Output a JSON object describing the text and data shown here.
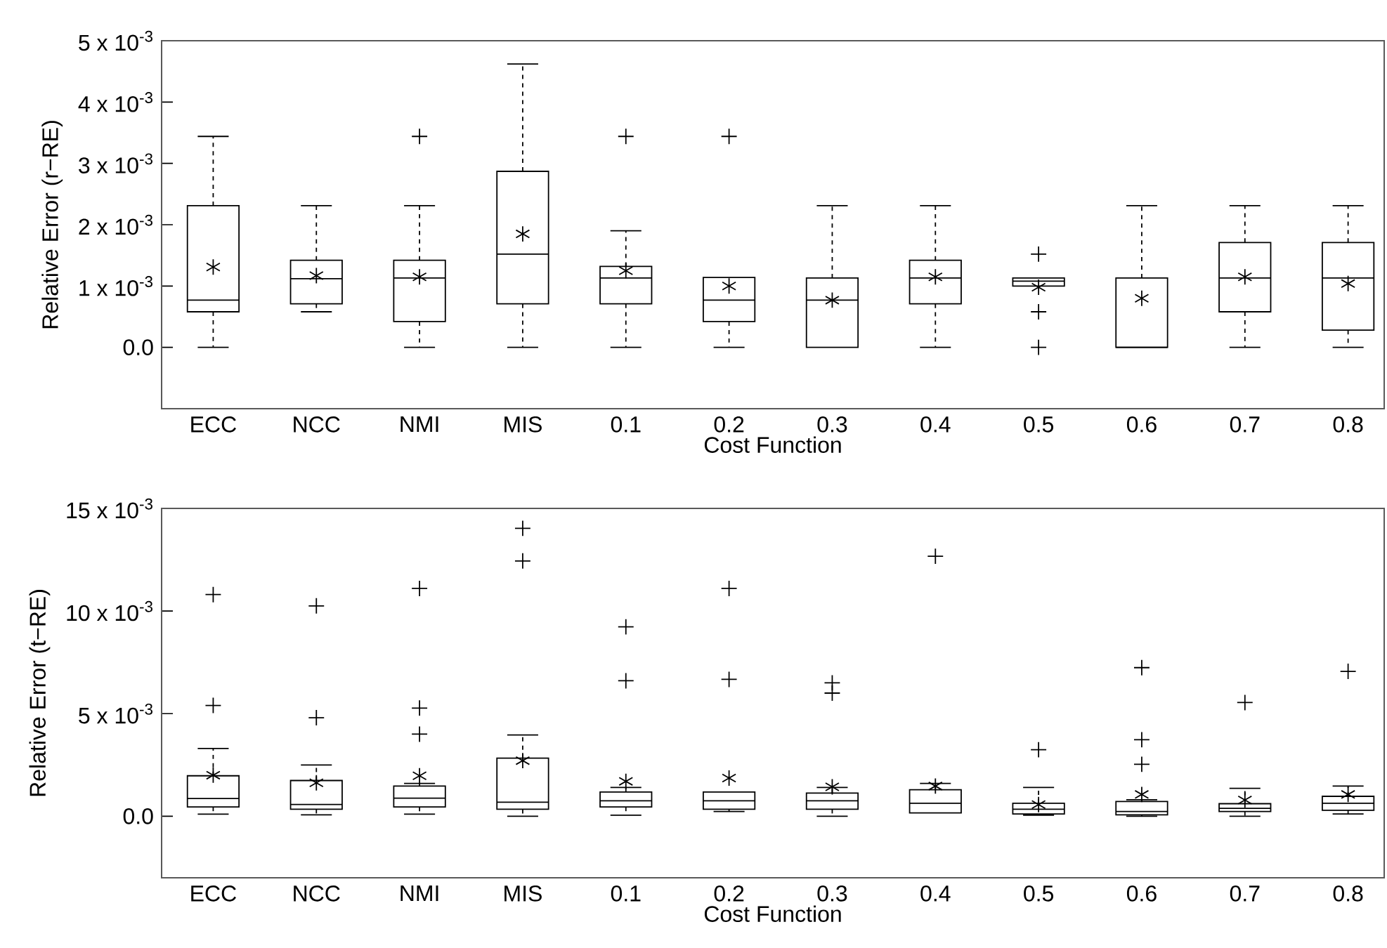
{
  "chart_data": [
    {
      "type": "box",
      "categories": [
        "ECC",
        "NCC",
        "NMI",
        "MIS",
        "0.1",
        "0.2",
        "0.3",
        "0.4",
        "0.5",
        "0.6",
        "0.7",
        "0.8"
      ],
      "xlabel": "Cost Function",
      "ylabel": "Relative Error (r−RE)",
      "ylim": [
        -0.001,
        0.005
      ],
      "yticks": [
        {
          "value": 0,
          "label": "0.0"
        },
        {
          "value": 0.001,
          "label": "1 x 10$^{-3}$"
        },
        {
          "value": 0.002,
          "label": "2 x 10$^{-3}$"
        },
        {
          "value": 0.003,
          "label": "3 x 10$^{-3}$"
        },
        {
          "value": 0.004,
          "label": "4 x 10$^{-3}$"
        },
        {
          "value": 0.005,
          "label": "5 x 10$^{-3}$"
        }
      ],
      "line_style": "dashed",
      "boxes": [
        {
          "low": 0,
          "q1": 0.00058,
          "median": 0.00077,
          "q3": 0.00231,
          "high": 0.00344,
          "mean": 0.00131
        },
        {
          "low": 0.00058,
          "q1": 0.00071,
          "median": 0.00112,
          "q3": 0.00142,
          "high": 0.00231,
          "mean": 0.00117
        },
        {
          "low": 0,
          "q1": 0.00042,
          "median": 0.00113,
          "q3": 0.00142,
          "high": 0.00231,
          "mean": 0.00115,
          "outliers": [
            0.00344
          ]
        },
        {
          "low": 0,
          "q1": 0.00071,
          "median": 0.00152,
          "q3": 0.00287,
          "high": 0.00462,
          "mean": 0.00185
        },
        {
          "low": 0,
          "q1": 0.00071,
          "median": 0.00113,
          "q3": 0.00132,
          "high": 0.0019,
          "mean": 0.00125,
          "outliers": [
            0.00344
          ]
        },
        {
          "low": 0,
          "q1": 0.00042,
          "median": 0.00077,
          "q3": 0.00114,
          "high": 0.00114,
          "mean": 0.001,
          "outliers": [
            0.00344
          ]
        },
        {
          "low": 0,
          "q1": 0,
          "median": 0.00077,
          "q3": 0.00113,
          "high": 0.00231,
          "mean": 0.00077
        },
        {
          "low": 0,
          "q1": 0.00071,
          "median": 0.00113,
          "q3": 0.00142,
          "high": 0.00231,
          "mean": 0.00115
        },
        {
          "low": 0.001,
          "q1": 0.001,
          "median": 0.00108,
          "q3": 0.00113,
          "high": 0.00113,
          "mean": 0.00098,
          "outliers": [
            0.00152,
            0.00058,
            0
          ]
        },
        {
          "low": 0,
          "q1": 0,
          "median": 0,
          "q3": 0.00113,
          "high": 0.00231,
          "mean": 0.0008
        },
        {
          "low": 0,
          "q1": 0.00058,
          "median": 0.00113,
          "q3": 0.00171,
          "high": 0.00231,
          "mean": 0.00115
        },
        {
          "low": 0,
          "q1": 0.00028,
          "median": 0.00113,
          "q3": 0.00171,
          "high": 0.00231,
          "mean": 0.00104
        }
      ]
    },
    {
      "type": "box",
      "categories": [
        "ECC",
        "NCC",
        "NMI",
        "MIS",
        "0.1",
        "0.2",
        "0.3",
        "0.4",
        "0.5",
        "0.6",
        "0.7",
        "0.8"
      ],
      "xlabel": "Cost Function",
      "ylabel": "Relative Error (t−RE)",
      "ylim": [
        -0.003,
        0.015
      ],
      "yticks": [
        {
          "value": 0,
          "label": "0.0"
        },
        {
          "value": 0.005,
          "label": "5 x 10$^{-3}$"
        },
        {
          "value": 0.01,
          "label": "10 x 10$^{-3}$"
        },
        {
          "value": 0.015,
          "label": "15 x 10$^{-3}$"
        }
      ],
      "line_style": "dashed",
      "boxes": [
        {
          "low": 0.0001,
          "q1": 0.00045,
          "median": 0.00086,
          "q3": 0.00197,
          "high": 0.0033,
          "mean": 0.002,
          "outliers": [
            0.0054,
            0.0108
          ]
        },
        {
          "low": 7e-05,
          "q1": 0.00034,
          "median": 0.00057,
          "q3": 0.00174,
          "high": 0.0025,
          "mean": 0.00163,
          "outliers": [
            0.0048,
            0.01025
          ]
        },
        {
          "low": 0.0001,
          "q1": 0.00045,
          "median": 0.00088,
          "q3": 0.00147,
          "high": 0.0016,
          "mean": 0.00197,
          "outliers": [
            0.004,
            0.00527,
            0.0111
          ]
        },
        {
          "low": 0,
          "q1": 0.00034,
          "median": 0.00068,
          "q3": 0.00283,
          "high": 0.00396,
          "mean": 0.00271,
          "outliers": [
            0.01244,
            0.01403
          ]
        },
        {
          "low": 5e-05,
          "q1": 0.00045,
          "median": 0.00075,
          "q3": 0.00118,
          "high": 0.0014,
          "mean": 0.0017,
          "outliers": [
            0.0066,
            0.00923
          ]
        },
        {
          "low": 0.00023,
          "q1": 0.00034,
          "median": 0.00075,
          "q3": 0.00118,
          "high": 0.00118,
          "mean": 0.00186,
          "outliers": [
            0.00667,
            0.0111
          ]
        },
        {
          "low": 0,
          "q1": 0.00034,
          "median": 0.00075,
          "q3": 0.00113,
          "high": 0.0014,
          "mean": 0.00143,
          "outliers": [
            0.006,
            0.0065
          ]
        },
        {
          "low": 0.00016,
          "q1": 0.00016,
          "median": 0.00063,
          "q3": 0.00129,
          "high": 0.0016,
          "mean": 0.00147,
          "outliers": [
            0.01267
          ]
        },
        {
          "low": 5e-05,
          "q1": 0.00011,
          "median": 0.00034,
          "q3": 0.00063,
          "high": 0.0014,
          "mean": 0.00057,
          "outliers": [
            0.00324
          ]
        },
        {
          "low": 0,
          "q1": 7e-05,
          "median": 0.00023,
          "q3": 0.00072,
          "high": 0.0008,
          "mean": 0.00106,
          "outliers": [
            0.00253,
            0.00373,
            0.00724
          ]
        },
        {
          "low": 0,
          "q1": 0.00023,
          "median": 0.00038,
          "q3": 0.00061,
          "high": 0.00136,
          "mean": 0.00079,
          "outliers": [
            0.00554
          ]
        },
        {
          "low": 0.00011,
          "q1": 0.00029,
          "median": 0.00063,
          "q3": 0.00097,
          "high": 0.00147,
          "mean": 0.00106,
          "outliers": [
            0.00706
          ]
        }
      ]
    }
  ]
}
